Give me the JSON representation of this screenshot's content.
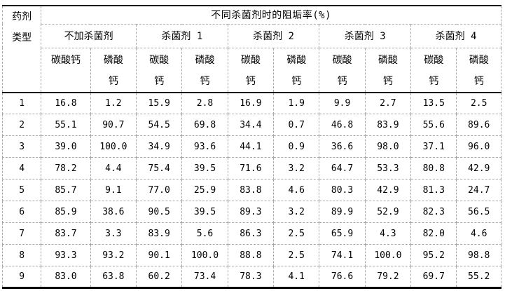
{
  "table": {
    "corner_header": "药剂\n类型",
    "title": "不同杀菌剂时的阻垢率(%)",
    "groups": [
      {
        "label": "不加杀菌剂",
        "sub": [
          "碳酸钙",
          "磷酸\n钙"
        ]
      },
      {
        "label": "杀菌剂 1",
        "sub": [
          "碳酸\n钙",
          "磷酸\n钙"
        ]
      },
      {
        "label": "杀菌剂 2",
        "sub": [
          "碳酸\n钙",
          "磷酸\n钙"
        ]
      },
      {
        "label": "杀菌剂 3",
        "sub": [
          "碳酸\n钙",
          "磷酸\n钙"
        ]
      },
      {
        "label": "杀菌剂 4",
        "sub": [
          "碳酸\n钙",
          "磷酸\n钙"
        ]
      }
    ],
    "rows": [
      {
        "label": "1",
        "values": [
          "16.8",
          "1.2",
          "15.9",
          "2.8",
          "16.9",
          "1.9",
          "9.9",
          "2.7",
          "13.5",
          "2.5"
        ]
      },
      {
        "label": "2",
        "values": [
          "55.1",
          "90.7",
          "54.5",
          "69.8",
          "34.4",
          "0.7",
          "46.8",
          "83.9",
          "55.6",
          "89.6"
        ]
      },
      {
        "label": "3",
        "values": [
          "39.0",
          "100.0",
          "34.9",
          "93.6",
          "44.1",
          "0.9",
          "36.6",
          "98.0",
          "37.1",
          "96.0"
        ]
      },
      {
        "label": "4",
        "values": [
          "78.2",
          "4.4",
          "75.4",
          "39.5",
          "71.6",
          "3.2",
          "64.7",
          "53.3",
          "80.8",
          "42.9"
        ]
      },
      {
        "label": "5",
        "values": [
          "85.7",
          "9.1",
          "77.0",
          "25.9",
          "83.8",
          "4.6",
          "80.3",
          "42.9",
          "81.3",
          "24.7"
        ]
      },
      {
        "label": "6",
        "values": [
          "85.9",
          "38.6",
          "90.5",
          "39.5",
          "89.3",
          "3.2",
          "89.9",
          "52.9",
          "82.3",
          "56.5"
        ]
      },
      {
        "label": "7",
        "values": [
          "83.7",
          "3.3",
          "83.9",
          "5.6",
          "86.3",
          "2.5",
          "65.9",
          "4.3",
          "82.0",
          "4.6"
        ]
      },
      {
        "label": "8",
        "values": [
          "93.3",
          "93.2",
          "90.1",
          "100.0",
          "88.8",
          "2.5",
          "74.1",
          "100.0",
          "95.2",
          "98.8"
        ]
      },
      {
        "label": "9",
        "values": [
          "83.0",
          "63.8",
          "60.2",
          "73.4",
          "78.3",
          "4.1",
          "76.6",
          "79.2",
          "69.7",
          "55.2"
        ]
      }
    ]
  },
  "colors": {
    "background": "#ffffff",
    "text": "#000000",
    "grid_dashed": "#a9a9a9",
    "rule_solid": "#000000"
  }
}
